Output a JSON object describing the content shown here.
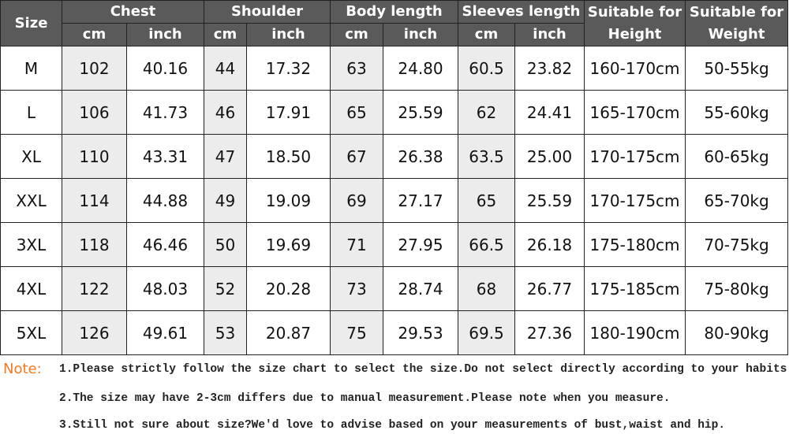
{
  "table": {
    "header": {
      "size": "Size",
      "groups": [
        "Chest",
        "Shoulder",
        "Body length",
        "Sleeves length"
      ],
      "units": [
        "cm",
        "inch"
      ],
      "height": "Suitable for Height",
      "weight": "Suitable for Weight"
    },
    "rows": [
      [
        "M",
        "102",
        "40.16",
        "44",
        "17.32",
        "63",
        "24.80",
        "60.5",
        "23.82",
        "160-170cm",
        "50-55kg"
      ],
      [
        "L",
        "106",
        "41.73",
        "46",
        "17.91",
        "65",
        "25.59",
        "62",
        "24.41",
        "165-170cm",
        "55-60kg"
      ],
      [
        "XL",
        "110",
        "43.31",
        "47",
        "18.50",
        "67",
        "26.38",
        "63.5",
        "25.00",
        "170-175cm",
        "60-65kg"
      ],
      [
        "XXL",
        "114",
        "44.88",
        "49",
        "19.09",
        "69",
        "27.17",
        "65",
        "25.59",
        "170-175cm",
        "65-70kg"
      ],
      [
        "3XL",
        "118",
        "46.46",
        "50",
        "19.69",
        "71",
        "27.95",
        "66.5",
        "26.18",
        "175-180cm",
        "70-75kg"
      ],
      [
        "4XL",
        "122",
        "48.03",
        "52",
        "20.28",
        "73",
        "28.74",
        "68",
        "26.77",
        "175-185cm",
        "75-80kg"
      ],
      [
        "5XL",
        "126",
        "49.61",
        "53",
        "20.87",
        "75",
        "29.53",
        "69.5",
        "27.36",
        "180-190cm",
        "80-90kg"
      ]
    ]
  },
  "notes": {
    "label": "Note:",
    "lines": [
      "1.Please strictly follow the size chart to select the size.Do not select directly according to your habits.",
      "2.The size may have 2-3cm differs due to manual measurement.Please note when you measure.",
      "3.Still not sure about size?We'd love to advise based on your measurements of bust,waist and hip."
    ]
  }
}
